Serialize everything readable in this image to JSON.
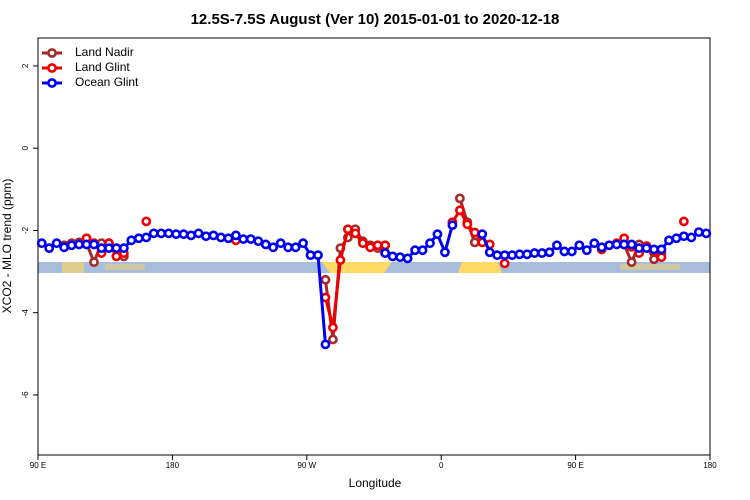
{
  "chart_data": {
    "type": "line",
    "title": "12.5S-7.5S August (Ver 10)   2015-01-01 to 2020-12-18",
    "x_label": "Longitude",
    "y_label": "XCO2 - MLO trend (ppm)",
    "xlim": [
      90,
      540
    ],
    "xticks": [
      {
        "value": 90,
        "label": "90 E"
      },
      180,
      {
        "value": 270,
        "label": "90 W"
      },
      {
        "value": 360,
        "label": "0"
      },
      {
        "value": 450,
        "label": "90 E"
      },
      {
        "value": 540,
        "label": "180"
      }
    ],
    "ylim": [
      -7.46,
      2.68
    ],
    "yticks": [
      -6,
      -4,
      -2,
      0,
      2
    ],
    "grid": false,
    "legend": "top-left",
    "series": [
      {
        "name": "Land Nadir",
        "color": "#a52a2a",
        "x": [
          107.5,
          112.5,
          117.5,
          122.5,
          127.5,
          132.5,
          137.5,
          142.5,
          147.5,
          152.5,
          282.5,
          287.5,
          292.5,
          297.5,
          302.5,
          307.5,
          312.5,
          317.5,
          322.5,
          327.5,
          372.5,
          377.5,
          382.5,
          387.5,
          482.5,
          487.5,
          492.5,
          497.5,
          502.5,
          507.5
        ],
        "values": [
          -2.36,
          -2.31,
          -2.29,
          -2.31,
          -2.77,
          -2.31,
          -2.31,
          -2.43,
          -2.63,
          null,
          -3.2,
          -4.65,
          -2.43,
          -2.17,
          -1.97,
          -2.26,
          -2.36,
          -2.43,
          -2.55,
          null,
          -1.22,
          -1.8,
          -2.29,
          null,
          -2.34,
          -2.77,
          -2.34,
          -2.38,
          -2.7,
          -2.55
        ]
      },
      {
        "name": "Land Glint",
        "color": "#ee0000",
        "x": [
          122.5,
          127.5,
          132.5,
          137.5,
          142.5,
          147.5,
          152.5,
          162.5,
          167.5,
          222.5,
          227.5,
          282.5,
          287.5,
          292.5,
          297.5,
          302.5,
          307.5,
          312.5,
          317.5,
          322.5,
          327.5,
          367.5,
          372.5,
          377.5,
          382.5,
          387.5,
          392.5,
          397.5,
          402.5,
          457.5,
          467.5,
          472.5,
          477.5,
          482.5,
          487.5,
          492.5,
          497.5,
          502.5,
          507.5,
          512.5,
          522.5
        ],
        "values": [
          -2.19,
          -2.31,
          -2.55,
          -2.31,
          -2.63,
          -2.55,
          null,
          -1.78,
          null,
          -2.24,
          null,
          -3.63,
          -4.36,
          -2.72,
          -1.97,
          -2.07,
          -2.31,
          -2.41,
          -2.36,
          -2.36,
          null,
          -1.8,
          -1.51,
          -1.85,
          -2.05,
          -2.29,
          -2.34,
          null,
          -2.8,
          null,
          -2.46,
          null,
          -2.31,
          -2.19,
          -2.4,
          -2.55,
          -2.38,
          -2.5,
          -2.65,
          null,
          -1.78
        ]
      },
      {
        "name": "Ocean Glint",
        "color": "#0000ee",
        "x": [
          92.5,
          97.5,
          102.5,
          107.5,
          112.5,
          117.5,
          122.5,
          127.5,
          132.5,
          137.5,
          142.5,
          147.5,
          152.5,
          157.5,
          162.5,
          167.5,
          172.5,
          177.5,
          182.5,
          187.5,
          192.5,
          197.5,
          202.5,
          207.5,
          212.5,
          217.5,
          222.5,
          227.5,
          232.5,
          237.5,
          242.5,
          247.5,
          252.5,
          257.5,
          262.5,
          267.5,
          272.5,
          277.5,
          282.5,
          287.5,
          322.5,
          327.5,
          332.5,
          337.5,
          342.5,
          347.5,
          352.5,
          357.5,
          362.5,
          367.5,
          372.5,
          387.5,
          392.5,
          397.5,
          402.5,
          407.5,
          412.5,
          417.5,
          422.5,
          427.5,
          432.5,
          437.5,
          442.5,
          447.5,
          452.5,
          457.5,
          462.5,
          467.5,
          472.5,
          477.5,
          482.5,
          487.5,
          492.5,
          497.5,
          502.5,
          507.5,
          512.5,
          517.5,
          522.5,
          527.5,
          532.5,
          537.5
        ],
        "values": [
          -2.31,
          -2.43,
          -2.31,
          -2.41,
          -2.36,
          -2.34,
          -2.34,
          -2.34,
          -2.43,
          -2.43,
          -2.43,
          -2.43,
          -2.24,
          -2.19,
          -2.17,
          -2.07,
          -2.07,
          -2.07,
          -2.09,
          -2.09,
          -2.12,
          -2.07,
          -2.14,
          -2.12,
          -2.17,
          -2.19,
          -2.12,
          -2.21,
          -2.21,
          -2.26,
          -2.34,
          -2.41,
          -2.31,
          -2.41,
          -2.41,
          -2.31,
          -2.6,
          -2.6,
          -4.77,
          null,
          -2.55,
          -2.63,
          -2.65,
          -2.68,
          -2.48,
          -2.48,
          -2.31,
          -2.09,
          -2.53,
          -1.87,
          null,
          -2.09,
          -2.53,
          -2.6,
          -2.6,
          -2.6,
          -2.58,
          -2.58,
          -2.55,
          -2.55,
          -2.53,
          -2.36,
          -2.51,
          -2.51,
          -2.36,
          -2.48,
          -2.31,
          -2.41,
          -2.36,
          -2.34,
          -2.34,
          -2.34,
          -2.43,
          -2.43,
          -2.46,
          -2.46,
          -2.24,
          -2.19,
          -2.14,
          -2.17,
          -2.04,
          -2.07
        ]
      }
    ]
  }
}
